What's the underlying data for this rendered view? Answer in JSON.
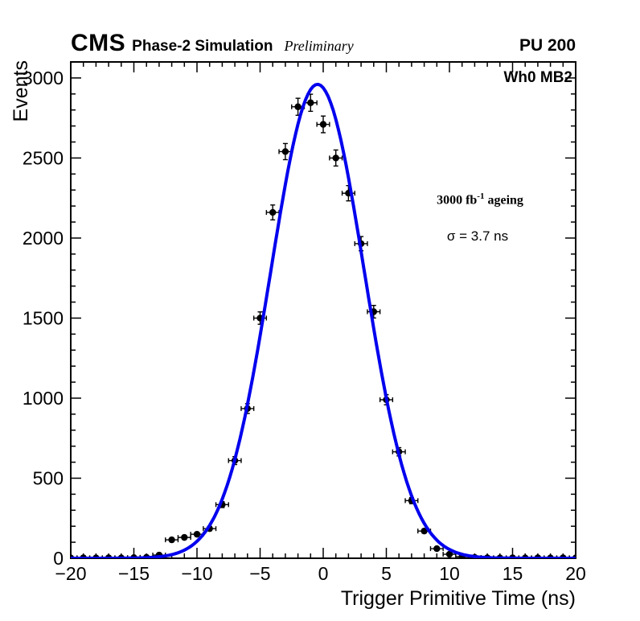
{
  "header": {
    "cms": "CMS",
    "subtitle": "Phase-2 Simulation",
    "preliminary": "Preliminary",
    "pu": "PU 200"
  },
  "plot_labels": {
    "chamber": "Wh0 MB2",
    "ageing": {
      "base": "3000 fb",
      "sup": "-1",
      "rest": " ageing"
    },
    "sigma": "σ = 3.7 ns"
  },
  "chart_data": {
    "type": "scatter",
    "title": "",
    "xlabel": "Trigger Primitive Time (ns)",
    "ylabel": "Events",
    "xlim": [
      -20,
      20
    ],
    "ylim": [
      0,
      3100
    ],
    "x_major_ticks": [
      -20,
      -15,
      -10,
      -5,
      0,
      5,
      10,
      15,
      20
    ],
    "y_major_ticks": [
      0,
      500,
      1000,
      1500,
      2000,
      2500,
      3000
    ],
    "x_minor_step": 1,
    "y_minor_step": 100,
    "grid": false,
    "legend": "none",
    "x_error_half_width": 0.5,
    "y_error_rule": "sqrt",
    "marker": {
      "shape": "circle",
      "color": "#000000",
      "radius": 3.5
    },
    "points": [
      [
        -20,
        2
      ],
      [
        -19,
        3
      ],
      [
        -18,
        2
      ],
      [
        -17,
        3
      ],
      [
        -16,
        2
      ],
      [
        -15,
        4
      ],
      [
        -14,
        6
      ],
      [
        -13,
        20
      ],
      [
        -12,
        115
      ],
      [
        -11,
        130
      ],
      [
        -10,
        150
      ],
      [
        -9,
        185
      ],
      [
        -8,
        335
      ],
      [
        -7,
        610
      ],
      [
        -6,
        935
      ],
      [
        -5,
        1500
      ],
      [
        -4,
        2160
      ],
      [
        -3,
        2540
      ],
      [
        -2,
        2820
      ],
      [
        -1,
        2845
      ],
      [
        0,
        2710
      ],
      [
        1,
        2500
      ],
      [
        2,
        2280
      ],
      [
        3,
        1965
      ],
      [
        4,
        1540
      ],
      [
        5,
        990
      ],
      [
        6,
        665
      ],
      [
        7,
        360
      ],
      [
        8,
        170
      ],
      [
        9,
        60
      ],
      [
        10,
        25
      ],
      [
        11,
        10
      ],
      [
        12,
        5
      ],
      [
        13,
        3
      ],
      [
        14,
        2
      ],
      [
        15,
        3
      ],
      [
        16,
        2
      ],
      [
        17,
        3
      ],
      [
        18,
        2
      ],
      [
        19,
        3
      ],
      [
        20,
        2
      ]
    ],
    "fit": {
      "type": "gaussian",
      "amplitude": 2960,
      "mean": -0.45,
      "sigma_ns": 3.7,
      "color": "#0000ee",
      "width": 4
    }
  }
}
